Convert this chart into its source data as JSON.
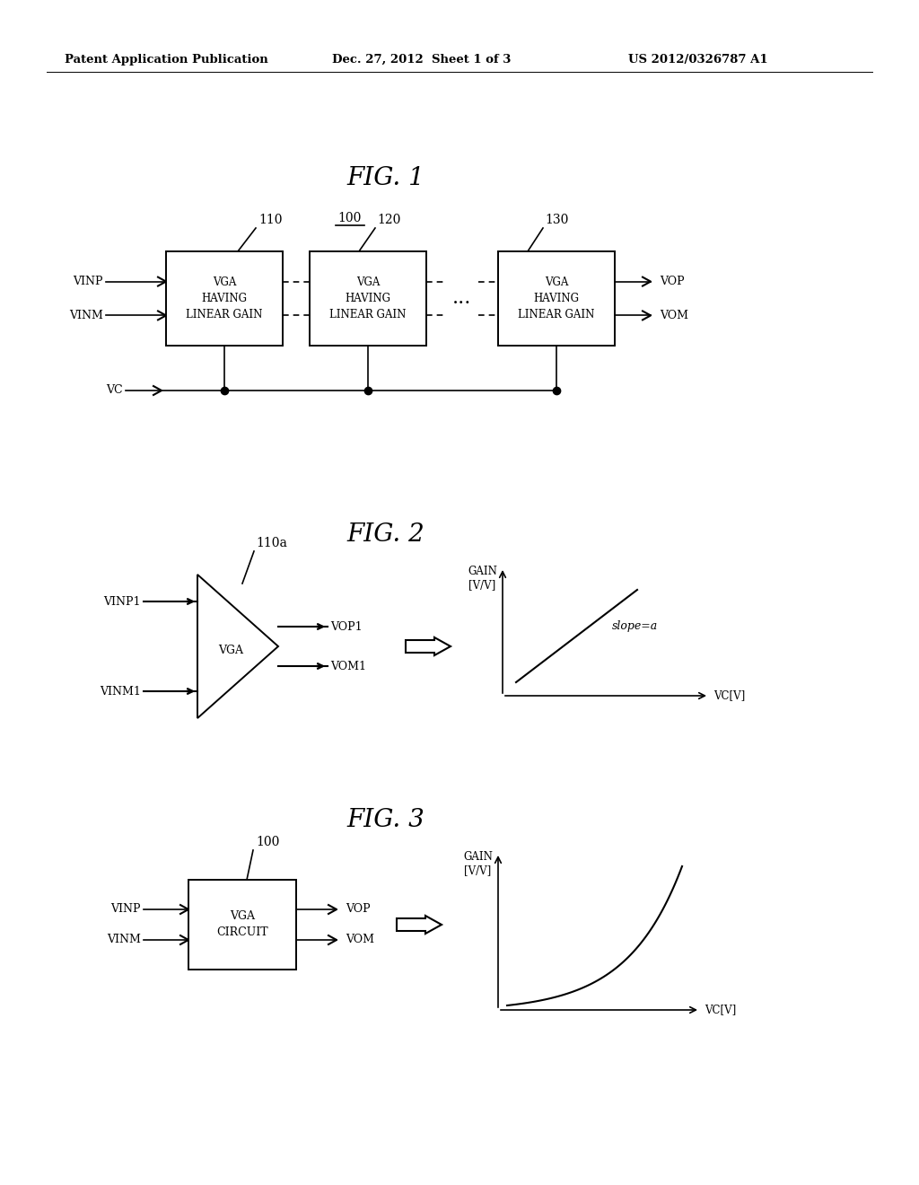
{
  "bg_color": "#ffffff",
  "text_color": "#000000",
  "line_color": "#000000",
  "header_left": "Patent Application Publication",
  "header_mid": "Dec. 27, 2012  Sheet 1 of 3",
  "header_right": "US 2012/0326787 A1",
  "fig1_title": "FIG. 1",
  "fig2_title": "FIG. 2",
  "fig3_title": "FIG. 3",
  "label_100_fig1": "100",
  "label_110": "110",
  "label_120": "120",
  "label_130": "130",
  "box1_text": "VGA\nHAVING\nLINEAR GAIN",
  "box2_text": "VGA\nHAVING\nLINEAR GAIN",
  "box3_text": "VGA\nHAVING\nLINEAR GAIN",
  "vinp": "VINP",
  "vinm": "VINM",
  "vc": "VC",
  "vop": "VOP",
  "vom": "VOM",
  "label_110a": "110a",
  "vinp1": "VINP1",
  "vinm1": "VINM1",
  "vop1": "VOP1",
  "vom1": "VOM1",
  "vga_label": "VGA",
  "slope_label": "slope=a",
  "gain_label_fig2": "GAIN\n[V/V]",
  "vc_label_fig2": "VC[V]",
  "label_100_fig3": "100",
  "vinp_fig3": "VINP",
  "vinm_fig3": "VINM",
  "vop_fig3": "VOP",
  "vom_fig3": "VOM",
  "vga_circuit_label": "VGA\nCIRCUIT",
  "gain_label_fig3": "GAIN\n[V/V]",
  "vc_label_fig3": "VC[V]"
}
